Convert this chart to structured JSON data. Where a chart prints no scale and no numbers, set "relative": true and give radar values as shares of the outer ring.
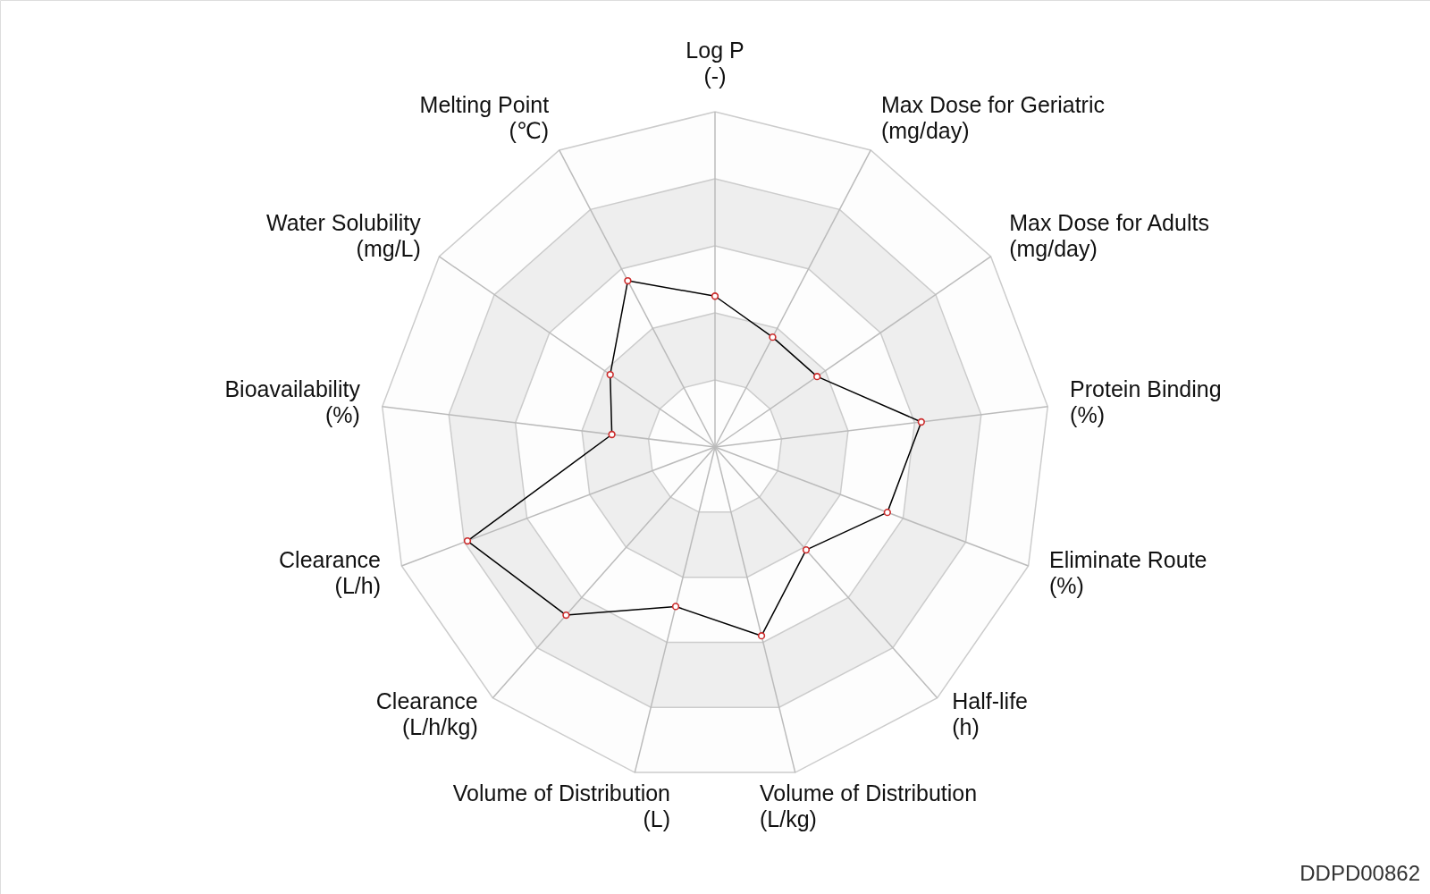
{
  "chart_data": {
    "type": "radar",
    "categories": [
      "Log P\n(-)",
      "Max Dose for Geriatric\n(mg/day)",
      "Max Dose for Adults\n(mg/day)",
      "Protein Binding\n(%)",
      "Eliminate Route\n(%)",
      "Half-life\n(h)",
      "Volume of Distribution\n(L/kg)",
      "Volume of Distribution\n(L)",
      "Clearance\n(L/h/kg)",
      "Clearance\n(L/h)",
      "Bioavailability\n(%)",
      "Water Solubility\n(mg/L)",
      "Melting Point\n(℃)"
    ],
    "relative": true,
    "series": [
      {
        "color": "#000000",
        "values": [
          0.45,
          0.37,
          0.37,
          0.62,
          0.55,
          0.41,
          0.58,
          0.49,
          0.67,
          0.79,
          0.31,
          0.38,
          0.56
        ]
      }
    ],
    "marker": "circle",
    "line_style": "solid",
    "grid": true,
    "annotations": [
      "DDPD00862"
    ]
  }
}
